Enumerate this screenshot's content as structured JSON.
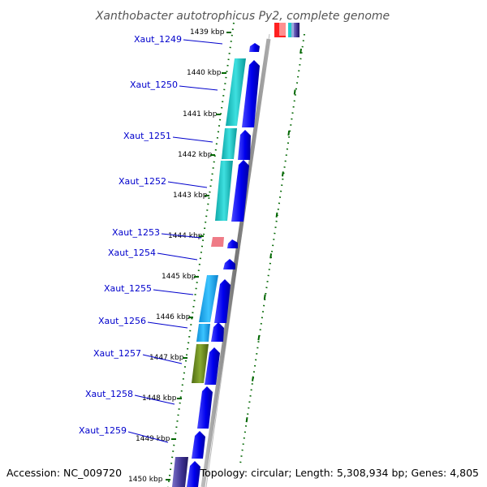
{
  "title": "Xanthobacter autotrophicus Py2, complete genome",
  "footer": {
    "accession": "Accession: NC_009720",
    "topology": "Topology: circular; Length: 5,308,934 bp; Genes: 4,805"
  },
  "ruler_labels": [
    "1439 kbp",
    "1440 kbp",
    "1441 kbp",
    "1442 kbp",
    "1443 kbp",
    "1444 kbp",
    "1445 kbp",
    "1446 kbp",
    "1447 kbp",
    "1448 kbp",
    "1449 kbp",
    "1450 kbp"
  ],
  "gene_labels": [
    "Xaut_1249",
    "Xaut_1250",
    "Xaut_1251",
    "Xaut_1252",
    "Xaut_1253",
    "Xaut_1254",
    "Xaut_1255",
    "Xaut_1256",
    "Xaut_1257",
    "Xaut_1258",
    "Xaut_1259"
  ],
  "colors": {
    "cds": "#0000ee",
    "cog_cyan": "#19c8c8",
    "cog_lightblue": "#19a9ee",
    "cog_olive": "#6b8e23",
    "cog_pink": "#ef7b86",
    "cog_purple": "#5a4fa8",
    "tick": "#006600",
    "backbone": "#888888",
    "label": "#0000cc"
  }
}
